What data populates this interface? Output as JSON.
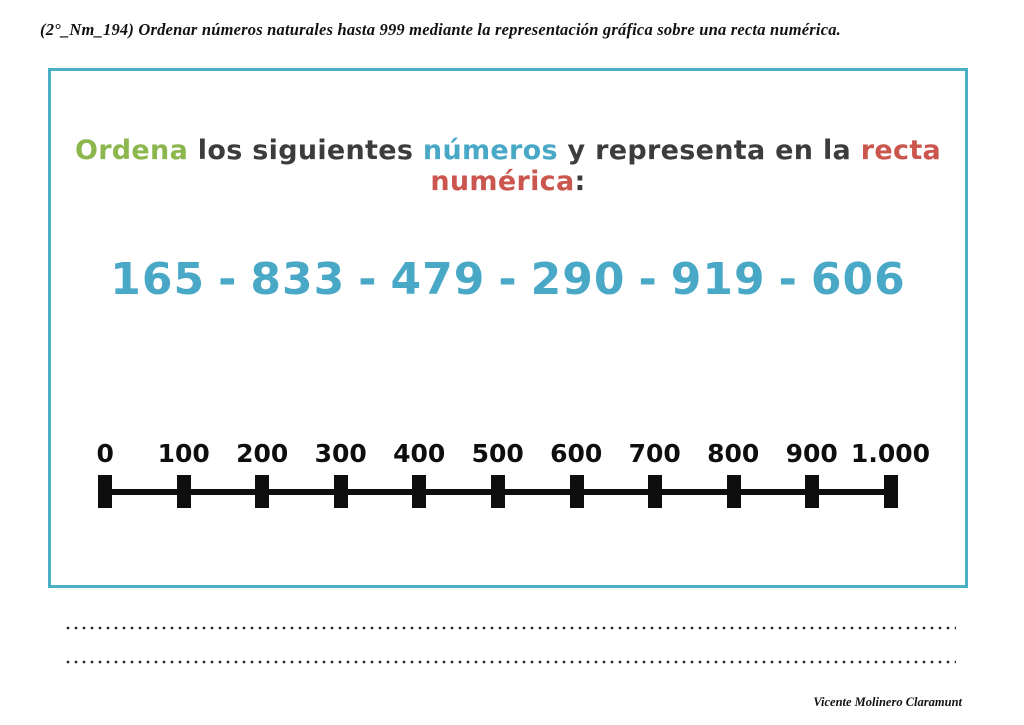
{
  "colors": {
    "box_border": "#4bafc4",
    "accent_green": "#8cb74f",
    "accent_teal": "#49a8c6",
    "accent_red": "#cb564e",
    "text_dark": "#3c3c3c",
    "line_black": "#0e0e0e"
  },
  "header": {
    "objective": "(2°_Nm_194) Ordenar números naturales hasta 999 mediante la representación gráfica sobre una recta numérica."
  },
  "worksheet": {
    "title_parts": [
      {
        "text": "Ordena",
        "color": "#8cb74f"
      },
      {
        "text": " los siguientes ",
        "color": "#3c3c3c"
      },
      {
        "text": "números",
        "color": "#49a8c6"
      },
      {
        "text": " y representa en la ",
        "color": "#3c3c3c"
      },
      {
        "text": "recta numérica",
        "color": "#cb564e"
      },
      {
        "text": ":",
        "color": "#3c3c3c"
      }
    ],
    "numbers": [
      "165",
      "833",
      "479",
      "290",
      "919",
      "606"
    ],
    "separator": "-",
    "number_line": {
      "tick_labels": [
        "0",
        "100",
        "200",
        "300",
        "400",
        "500",
        "600",
        "700",
        "800",
        "900",
        "1.000"
      ]
    }
  },
  "footer": {
    "signature": "Vicente Molinero Claramunt"
  }
}
